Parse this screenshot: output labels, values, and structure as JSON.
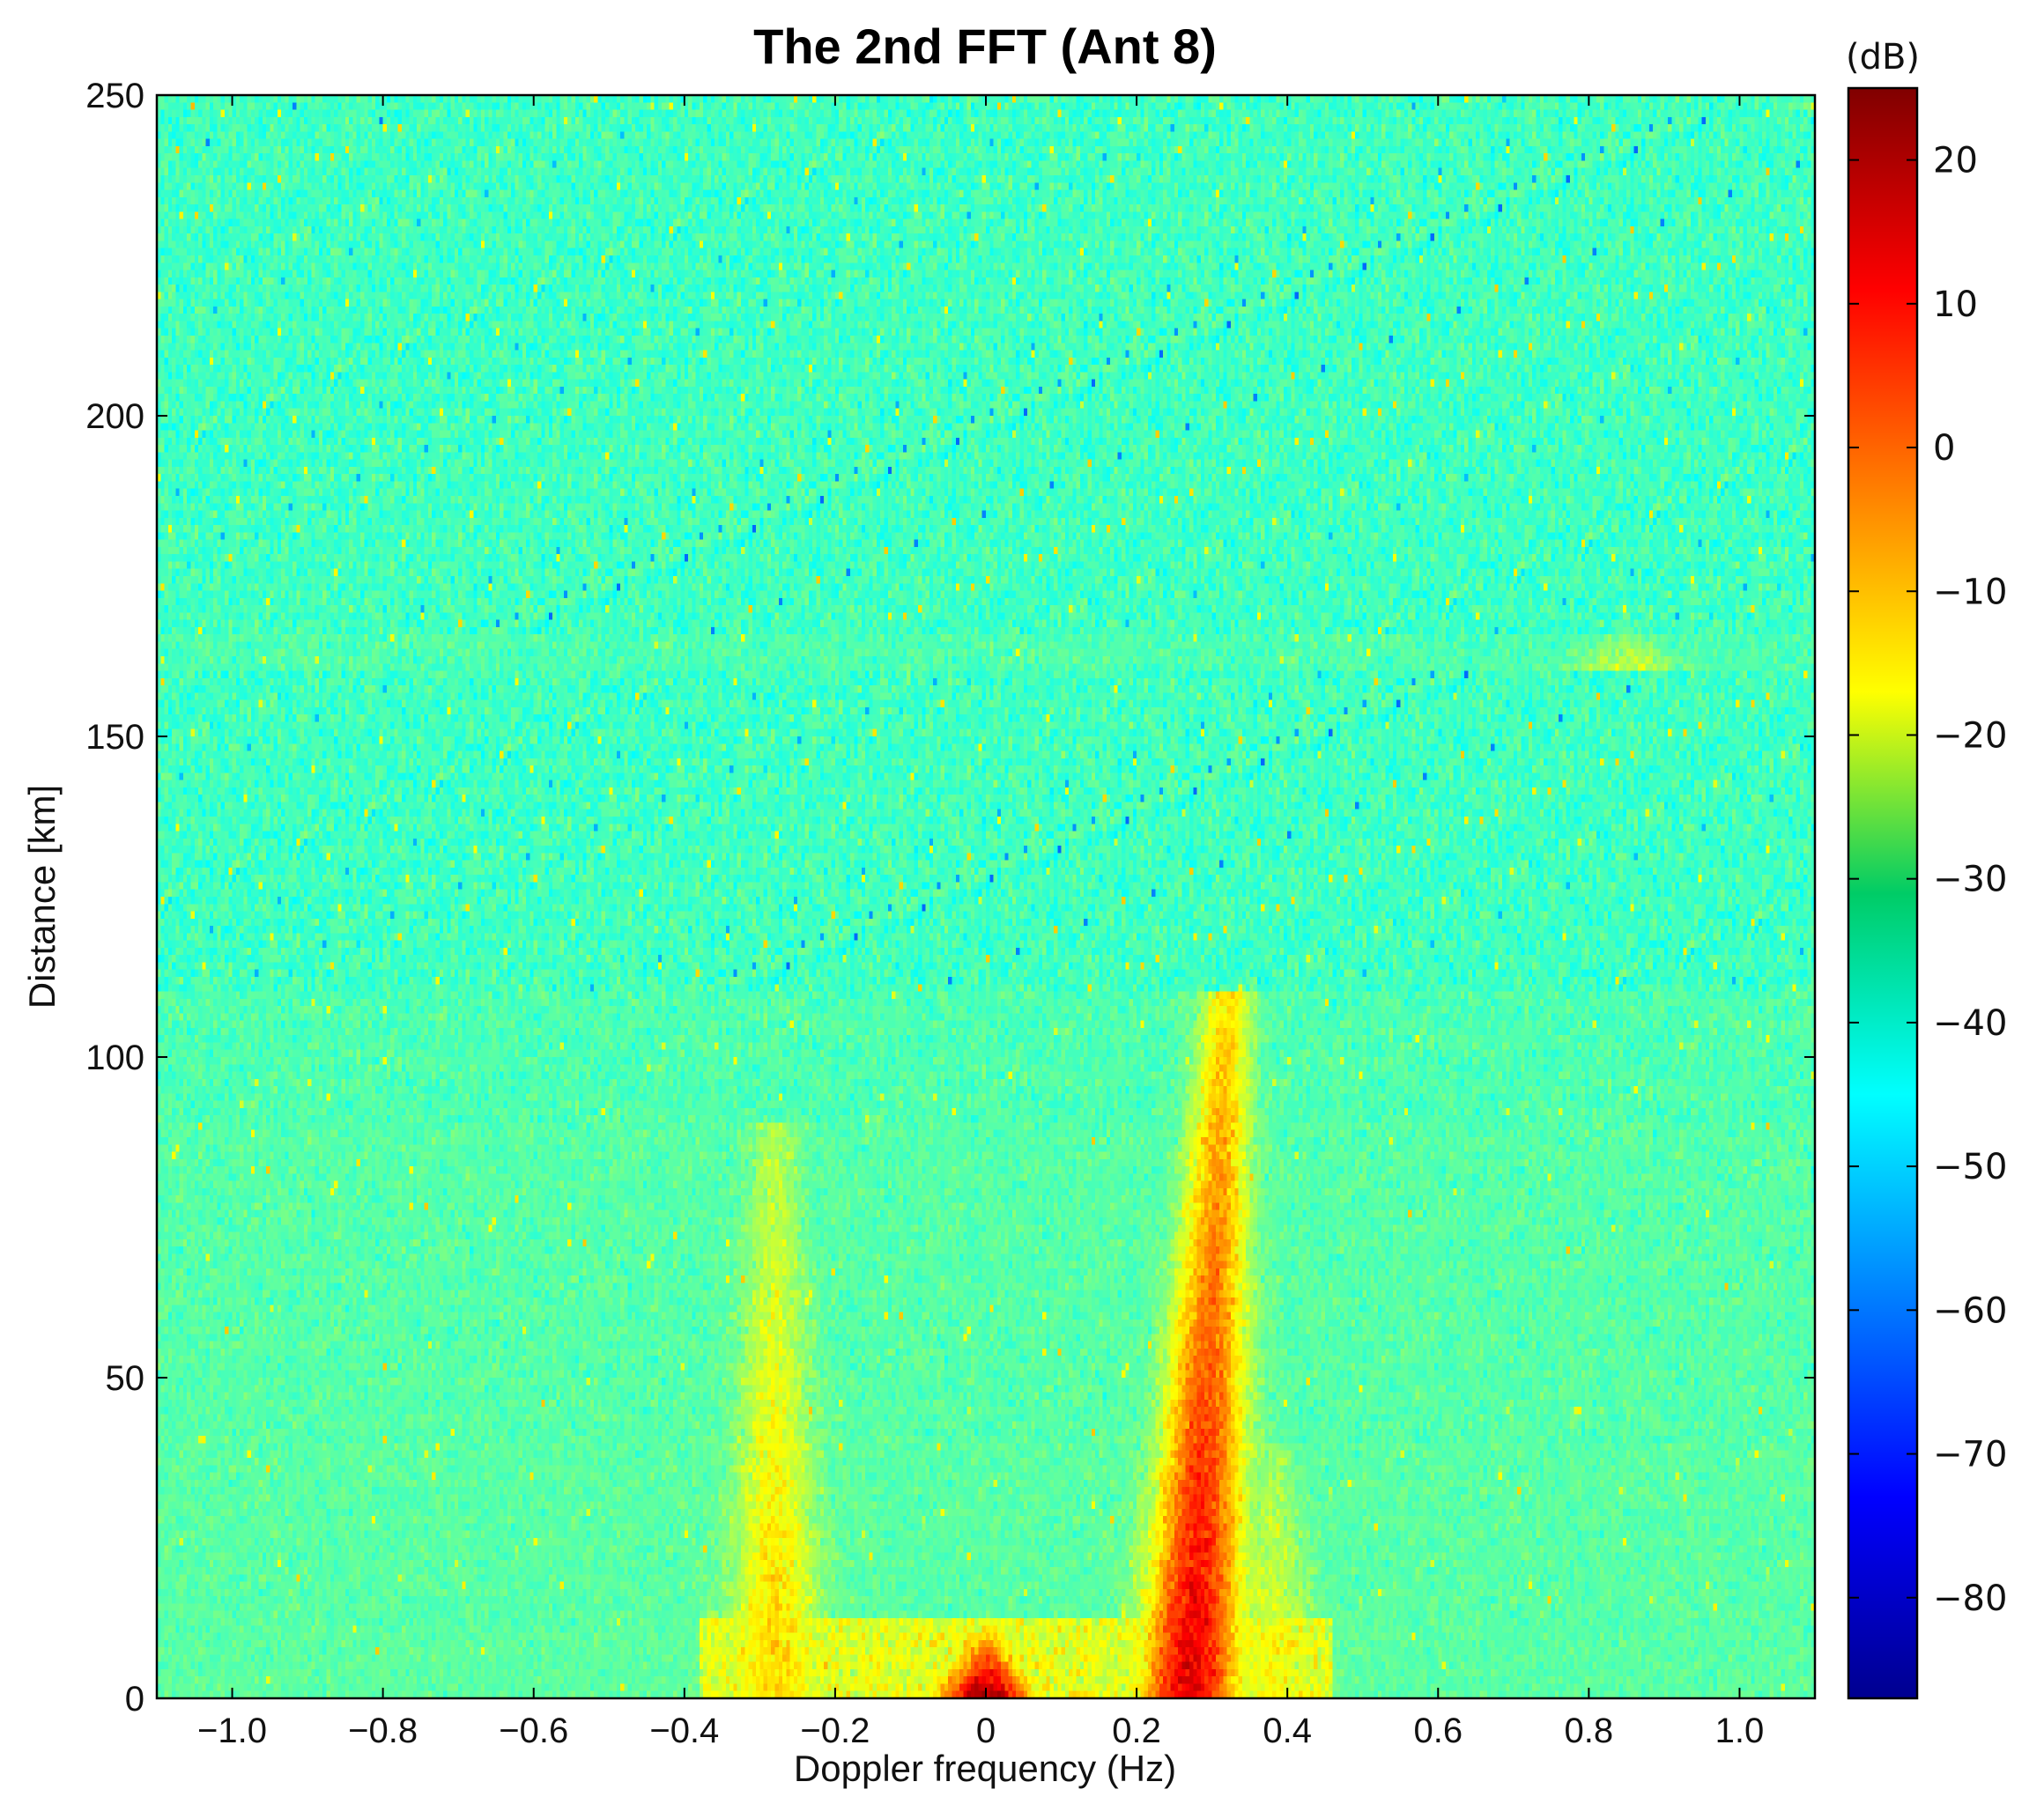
{
  "chart_data": {
    "type": "heatmap",
    "title": "The 2nd FFT (Ant 8)",
    "xlabel": "Doppler frequency (Hz)",
    "ylabel": "Distance [km]",
    "xlim": [
      -1.1,
      1.1
    ],
    "ylim": [
      0,
      250
    ],
    "x_ticks": [
      -1.0,
      -0.8,
      -0.6,
      -0.4,
      -0.2,
      0,
      0.2,
      0.4,
      0.6,
      0.8,
      1.0
    ],
    "x_tick_labels": [
      "−1.0",
      "−0.8",
      "−0.6",
      "−0.4",
      "−0.2",
      "0",
      "0.2",
      "0.4",
      "0.6",
      "0.8",
      "1.0"
    ],
    "y_ticks": [
      0,
      50,
      100,
      150,
      200,
      250
    ],
    "y_tick_labels": [
      "0",
      "50",
      "100",
      "150",
      "200",
      "250"
    ],
    "colorbar": {
      "unit_label": "(dB)",
      "range": [
        -87,
        25
      ],
      "colormap": "jet",
      "ticks": [
        20,
        10,
        0,
        -10,
        -20,
        -30,
        -40,
        -50,
        -60,
        -70,
        -80
      ],
      "tick_labels": [
        "20",
        "10",
        "0",
        "−10",
        "−20",
        "−30",
        "−40",
        "−50",
        "−60",
        "−70",
        "−80"
      ]
    },
    "background_level_db": -38,
    "features": [
      {
        "x": 0.27,
        "y_from": 0,
        "y_to": 110,
        "peak_db": 15
      },
      {
        "x": -0.28,
        "y_from": 0,
        "y_to": 90,
        "peak_db": -12
      },
      {
        "x": 0.38,
        "y_from": 0,
        "y_to": 40,
        "peak_db": -18
      },
      {
        "x": 0.0,
        "y_from": 0,
        "y_to": 10,
        "peak_db": 22
      },
      {
        "x": 0.85,
        "y_from": 160,
        "y_to": 166,
        "peak_db": -22
      }
    ]
  }
}
